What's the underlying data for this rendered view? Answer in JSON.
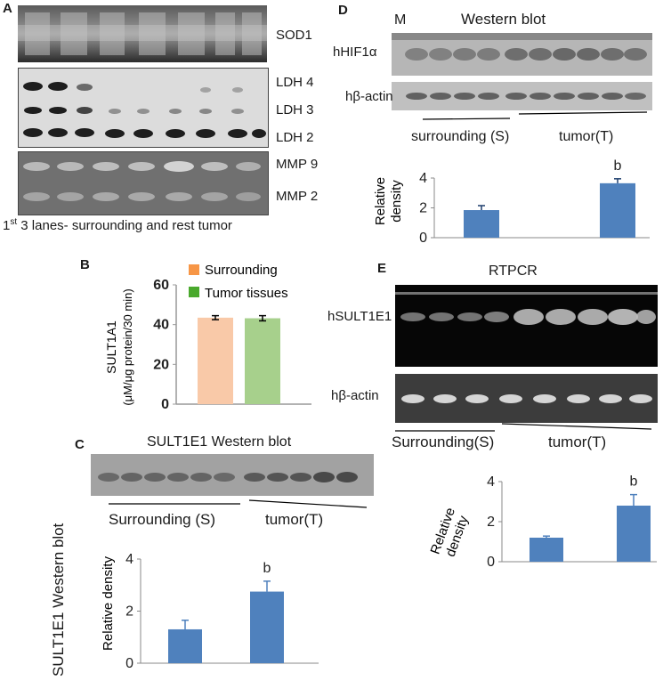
{
  "panelA": {
    "letter": "A",
    "sod1": "SOD1",
    "ldh_labels": [
      "LDH 4",
      "LDH 3",
      "LDH 2"
    ],
    "mmp_labels": [
      "MMP 9",
      "MMP 2"
    ],
    "caption_pre": "1",
    "caption_sup": "st",
    "caption_post": " 3 lanes- surrounding and rest tumor"
  },
  "panelB": {
    "letter": "B",
    "legend": [
      "Surrounding",
      "Tumor tissues"
    ],
    "ylabel_line1": "SULT1A1",
    "ylabel_line2": "(μM/μg protein/30 min)",
    "colors": {
      "surrounding": "#f9c9a8",
      "tumor": "#a7d08c",
      "legend_surrounding": "#f79646",
      "legend_tumor": "#4aa92d"
    }
  },
  "panelC": {
    "letter": "C",
    "title": "SULT1E1 Western blot",
    "group_s": "Surrounding (S)",
    "group_t": "tumor(T)",
    "side_label": "SULT1E1 Western blot",
    "ylabel": "Relative density",
    "sig": "b"
  },
  "panelD": {
    "letter": "D",
    "marker": "M",
    "title": "Western blot",
    "row1": "hHIF1α",
    "row2": "hβ-actin",
    "group_s": "surrounding (S)",
    "group_t": "tumor(T)",
    "ylabel_line1": "Relative",
    "ylabel_line2": "density",
    "sig": "b"
  },
  "panelE": {
    "letter": "E",
    "title": "RTPCR",
    "row1": "hSULT1E1",
    "row2": "hβ-actin",
    "group_s": "Surrounding(S)",
    "group_t": "tumor(T)",
    "ylabel_line1": "Relative",
    "ylabel_line2": "density",
    "sig": "b"
  },
  "bar_color": "#4f81bd",
  "chart_data": [
    {
      "id": "B",
      "type": "bar",
      "categories": [
        "Surrounding",
        "Tumor tissues"
      ],
      "values": [
        43.5,
        43.2
      ],
      "errors": [
        1.0,
        1.3
      ],
      "ylim": [
        0,
        60
      ],
      "yticks": [
        0,
        20,
        40,
        60
      ],
      "legend": "top-right"
    },
    {
      "id": "C",
      "type": "bar",
      "categories": [
        "S",
        "T"
      ],
      "values": [
        1.3,
        2.75
      ],
      "errors": [
        0.35,
        0.4
      ],
      "ylim": [
        0,
        4
      ],
      "yticks": [
        0,
        2,
        4
      ]
    },
    {
      "id": "D",
      "type": "bar",
      "categories": [
        "S",
        "T"
      ],
      "values": [
        1.85,
        3.65
      ],
      "errors": [
        0.3,
        0.3
      ],
      "ylim": [
        0,
        4
      ],
      "yticks": [
        0,
        2,
        4
      ]
    },
    {
      "id": "E",
      "type": "bar",
      "categories": [
        "S",
        "T"
      ],
      "values": [
        1.2,
        2.8
      ],
      "errors": [
        0.08,
        0.55
      ],
      "ylim": [
        0,
        4
      ],
      "yticks": [
        0,
        2,
        4
      ]
    }
  ]
}
